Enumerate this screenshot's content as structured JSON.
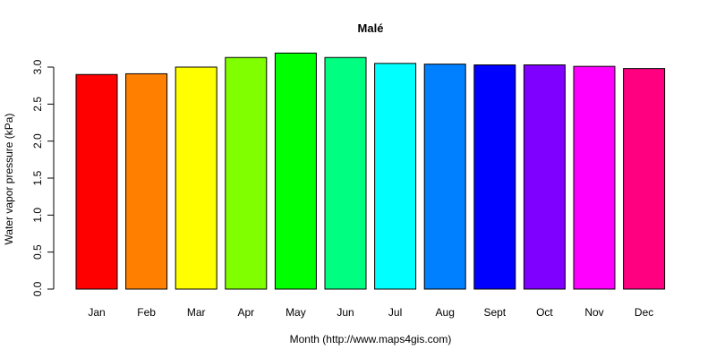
{
  "chart_data": {
    "type": "bar",
    "title": "Malé",
    "xlabel": "Month (http://www.maps4gis.com)",
    "ylabel": "Water vapor pressure (kPa)",
    "categories": [
      "Jan",
      "Feb",
      "Mar",
      "Apr",
      "May",
      "Jun",
      "Jul",
      "Aug",
      "Sept",
      "Oct",
      "Nov",
      "Dec"
    ],
    "values": [
      2.9,
      2.91,
      3.0,
      3.13,
      3.19,
      3.13,
      3.05,
      3.04,
      3.03,
      3.03,
      3.01,
      2.98
    ],
    "colors": [
      "#ff0000",
      "#ff8000",
      "#ffff00",
      "#80ff00",
      "#00ff00",
      "#00ff80",
      "#00ffff",
      "#0080ff",
      "#0000ff",
      "#8000ff",
      "#ff00ff",
      "#ff0080"
    ],
    "yticks": [
      "0.0",
      "0.5",
      "1.0",
      "1.5",
      "2.0",
      "2.5",
      "3.0"
    ],
    "ylim": [
      0,
      3.3
    ],
    "grid": false,
    "legend": "none"
  }
}
